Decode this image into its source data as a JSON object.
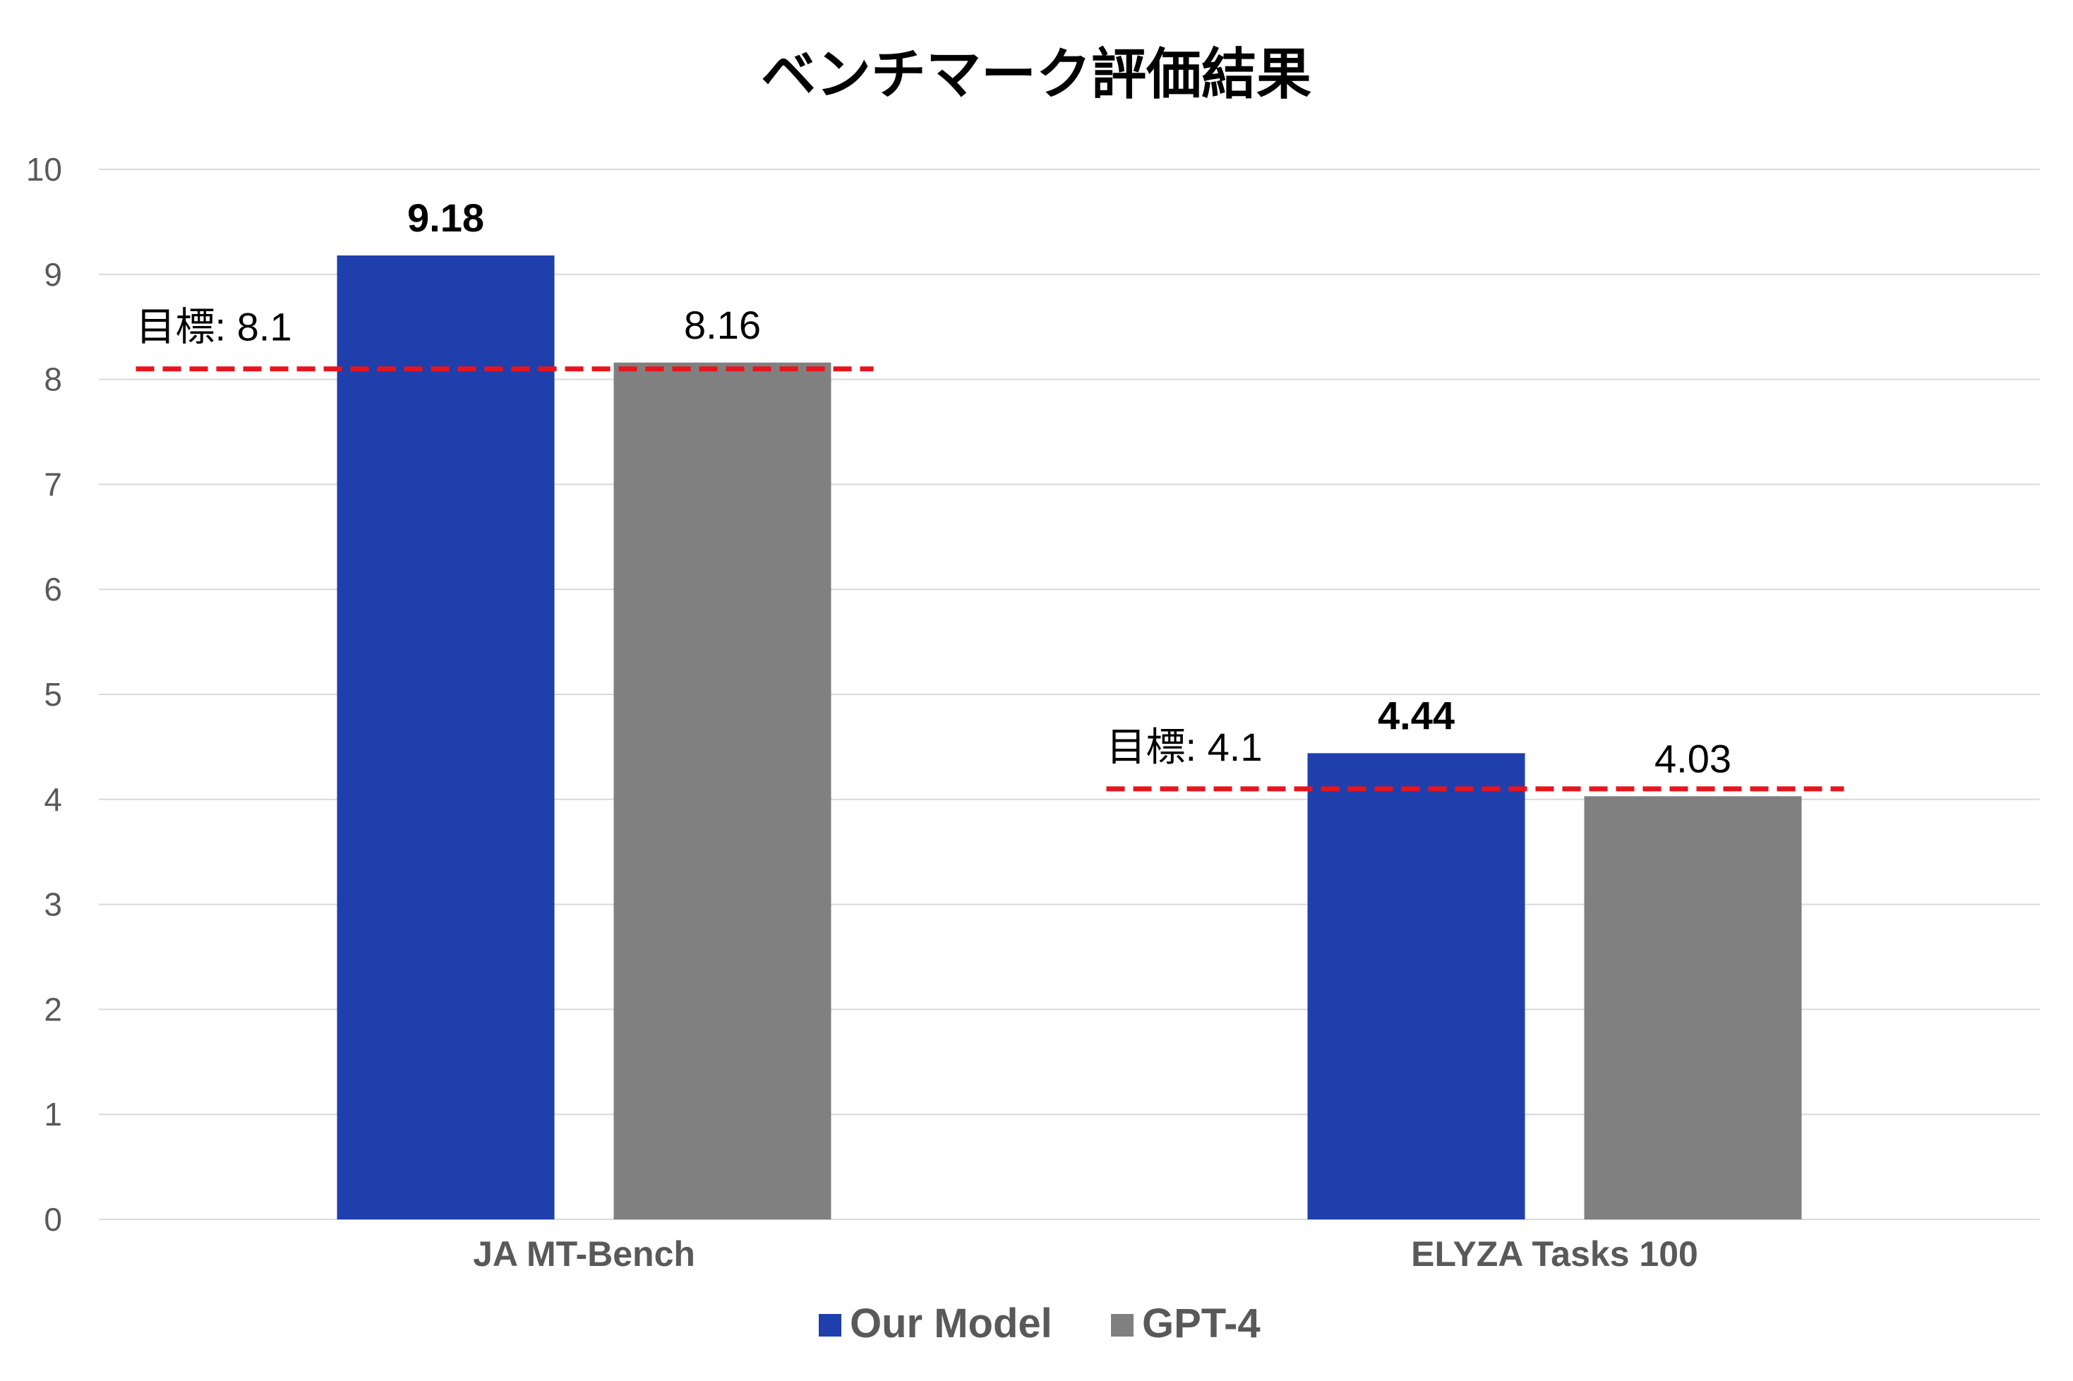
{
  "chart_data": {
    "type": "bar",
    "title": "ベンチマーク評価結果",
    "categories": [
      "JA MT-Bench",
      "ELYZA Tasks 100"
    ],
    "series": [
      {
        "name": "Our Model",
        "values": [
          9.18,
          4.44
        ],
        "color": "#1f3fad",
        "label_bold": true
      },
      {
        "name": "GPT-4",
        "values": [
          8.16,
          4.03
        ],
        "color": "#808080",
        "label_bold": false
      }
    ],
    "value_labels": [
      [
        "9.18",
        "4.44"
      ],
      [
        "8.16",
        "4.03"
      ]
    ],
    "targets": [
      {
        "category": "JA MT-Bench",
        "value": 8.1,
        "label": "目標: 8.1"
      },
      {
        "category": "ELYZA Tasks 100",
        "value": 4.1,
        "label": "目標: 4.1"
      }
    ],
    "target_color": "#e8141b",
    "ylim": [
      0,
      10
    ],
    "yticks": [
      "0",
      "1",
      "2",
      "3",
      "4",
      "5",
      "6",
      "7",
      "8",
      "9",
      "10"
    ],
    "xlabel": "",
    "ylabel": "",
    "grid": true,
    "legend": "bottom"
  }
}
